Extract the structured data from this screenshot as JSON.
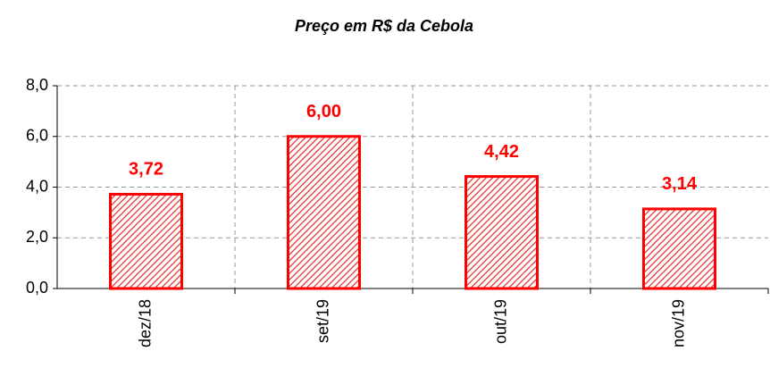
{
  "chart_data": {
    "type": "bar",
    "title": "Preço em R$ da Cebola",
    "categories": [
      "dez/18",
      "set/19",
      "out/19",
      "nov/19"
    ],
    "values": [
      3.72,
      6.0,
      4.42,
      3.14
    ],
    "value_labels": [
      "3,72",
      "6,00",
      "4,42",
      "3,14"
    ],
    "color": "#ff0000",
    "ylim": [
      0,
      8
    ],
    "yticks": [
      {
        "value": 0,
        "label": "0,0"
      },
      {
        "value": 2,
        "label": "2,0"
      },
      {
        "value": 4,
        "label": "4,0"
      },
      {
        "value": 6,
        "label": "6,0"
      },
      {
        "value": 8,
        "label": "8,0"
      }
    ],
    "grid": true
  }
}
